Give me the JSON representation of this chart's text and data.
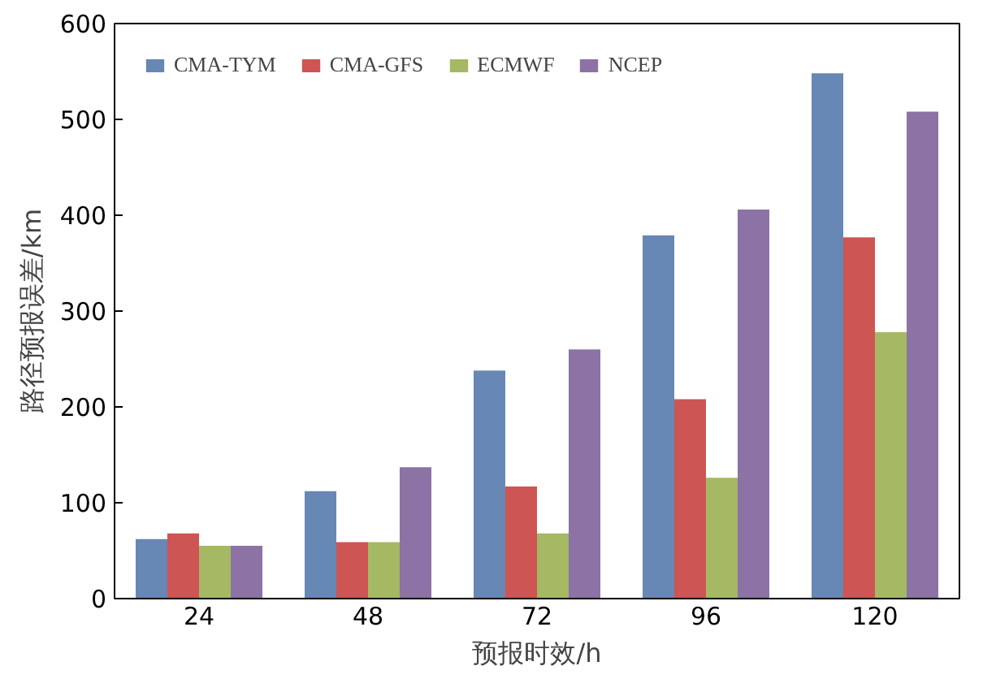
{
  "chart_data": {
    "type": "bar",
    "xlabel": "预报时效/h",
    "ylabel": "路径预报误差/km",
    "categories": [
      "24",
      "48",
      "72",
      "96",
      "120"
    ],
    "series": [
      {
        "name": "CMA-TYM",
        "color": "#6787b5",
        "values": [
          62,
          112,
          238,
          379,
          548
        ]
      },
      {
        "name": "CMA-GFS",
        "color": "#cd5553",
        "values": [
          68,
          59,
          117,
          208,
          377
        ]
      },
      {
        "name": "ECMWF",
        "color": "#a5b864",
        "values": [
          55,
          59,
          68,
          126,
          278
        ]
      },
      {
        "name": "NCEP",
        "color": "#8c72a5",
        "values": [
          55,
          137,
          260,
          406,
          508
        ]
      }
    ],
    "ylim": [
      0,
      600
    ],
    "yticks": [
      0,
      100,
      200,
      300,
      400,
      500,
      600
    ],
    "grid": false,
    "legend": "top left"
  }
}
